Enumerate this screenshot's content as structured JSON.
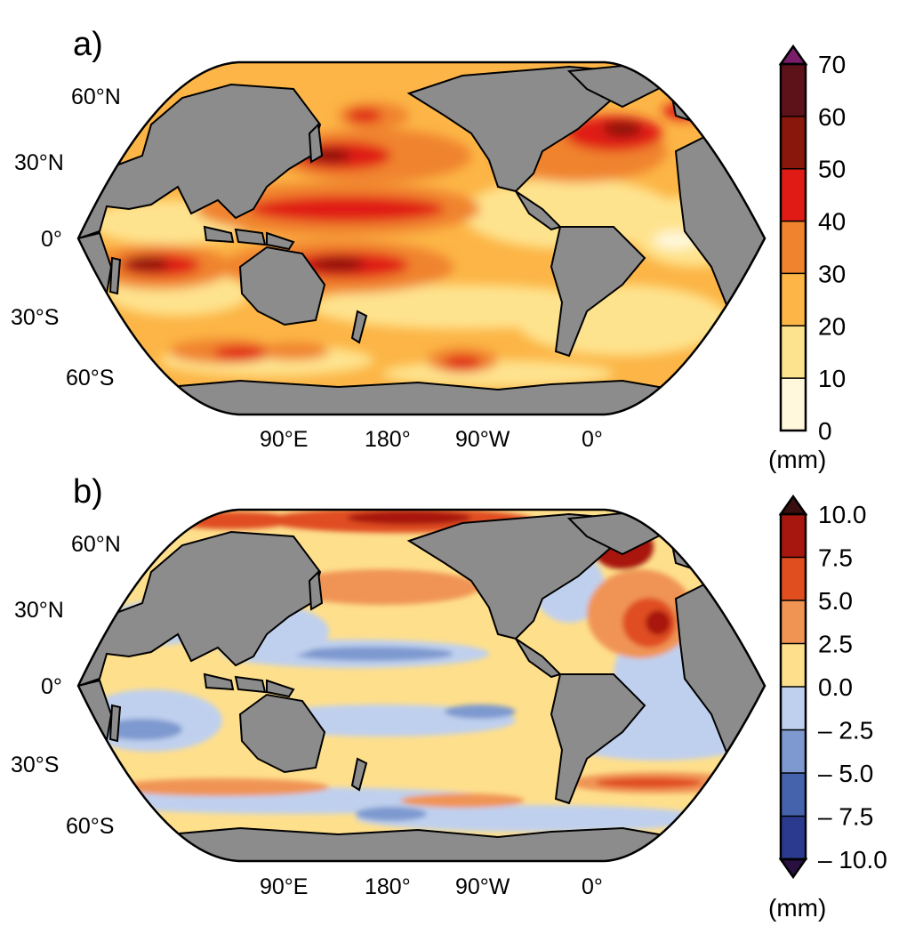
{
  "figure": {
    "panels": [
      {
        "label": "a)",
        "lat_labels": [
          "60°N",
          "30°N",
          "0°",
          "30°S",
          "60°S"
        ],
        "lon_labels": [
          "90°E",
          "180°",
          "90°W",
          "0°"
        ],
        "colorbar": {
          "ticks": [
            "70",
            "60",
            "50",
            "40",
            "30",
            "20",
            "10",
            "0"
          ],
          "unit": "(mm)",
          "colors": [
            "#fff8dc",
            "#fee38e",
            "#fcb546",
            "#f0832e",
            "#e01b16",
            "#8a170c",
            "#5c1218"
          ],
          "extend_top_color": "#7a1e6a"
        }
      },
      {
        "label": "b)",
        "lat_labels": [
          "60°N",
          "30°N",
          "0°",
          "30°S",
          "60°S"
        ],
        "lon_labels": [
          "90°E",
          "180°",
          "90°W",
          "0°"
        ],
        "colorbar": {
          "ticks": [
            "10.0",
            "7.5",
            "5.0",
            "2.5",
            "0.0",
            "– 2.5",
            "– 5.0",
            "– 7.5",
            "– 10.0"
          ],
          "unit": "(mm)",
          "colors": [
            "#2b3a8f",
            "#4563ad",
            "#7d99cf",
            "#bfd0ee",
            "#fedf8c",
            "#f09454",
            "#e04e20",
            "#a8170f"
          ],
          "extend_top_color": "#3a0f0f",
          "extend_bottom_color": "#2a1040"
        }
      }
    ],
    "colors": {
      "land": "#8c8c8c",
      "coast": "#000000"
    }
  }
}
